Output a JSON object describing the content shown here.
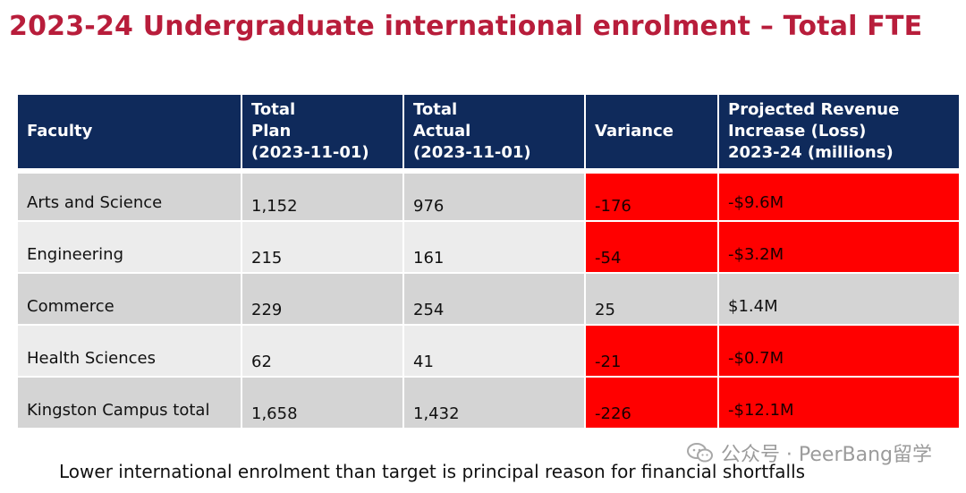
{
  "title": "2023-24 Undergraduate international enrolment – Total FTE",
  "table": {
    "headers": [
      "Faculty",
      "Total\nPlan\n(2023-11-01)",
      "Total\nActual\n(2023-11-01)",
      "Variance",
      "Projected Revenue\nIncrease (Loss)\n2023-24 (millions)"
    ],
    "rows": [
      {
        "faculty": "Arts and Science",
        "plan": "1,152",
        "actual": "976",
        "variance": "-176",
        "revenue": "-$9.6M",
        "negative": true
      },
      {
        "faculty": "Engineering",
        "plan": "215",
        "actual": "161",
        "variance": "-54",
        "revenue": "-$3.2M",
        "negative": true
      },
      {
        "faculty": "Commerce",
        "plan": "229",
        "actual": "254",
        "variance": "25",
        "revenue": "$1.4M",
        "negative": false
      },
      {
        "faculty": "Health Sciences",
        "plan": "62",
        "actual": "41",
        "variance": "-21",
        "revenue": "-$0.7M",
        "negative": true
      },
      {
        "faculty": "Kingston Campus total",
        "plan": "1,658",
        "actual": "1,432",
        "variance": "-226",
        "revenue": "-$12.1M",
        "negative": true
      }
    ],
    "highlight_color": "#ff0000",
    "header_color": "#0f2a5b"
  },
  "footnote": "Lower international enrolment than target is principal reason for financial shortfalls",
  "watermark": {
    "icon": "wechat-icon",
    "text": "公众号 · PeerBang留学"
  },
  "colors": {
    "title": "#b81d3b"
  }
}
